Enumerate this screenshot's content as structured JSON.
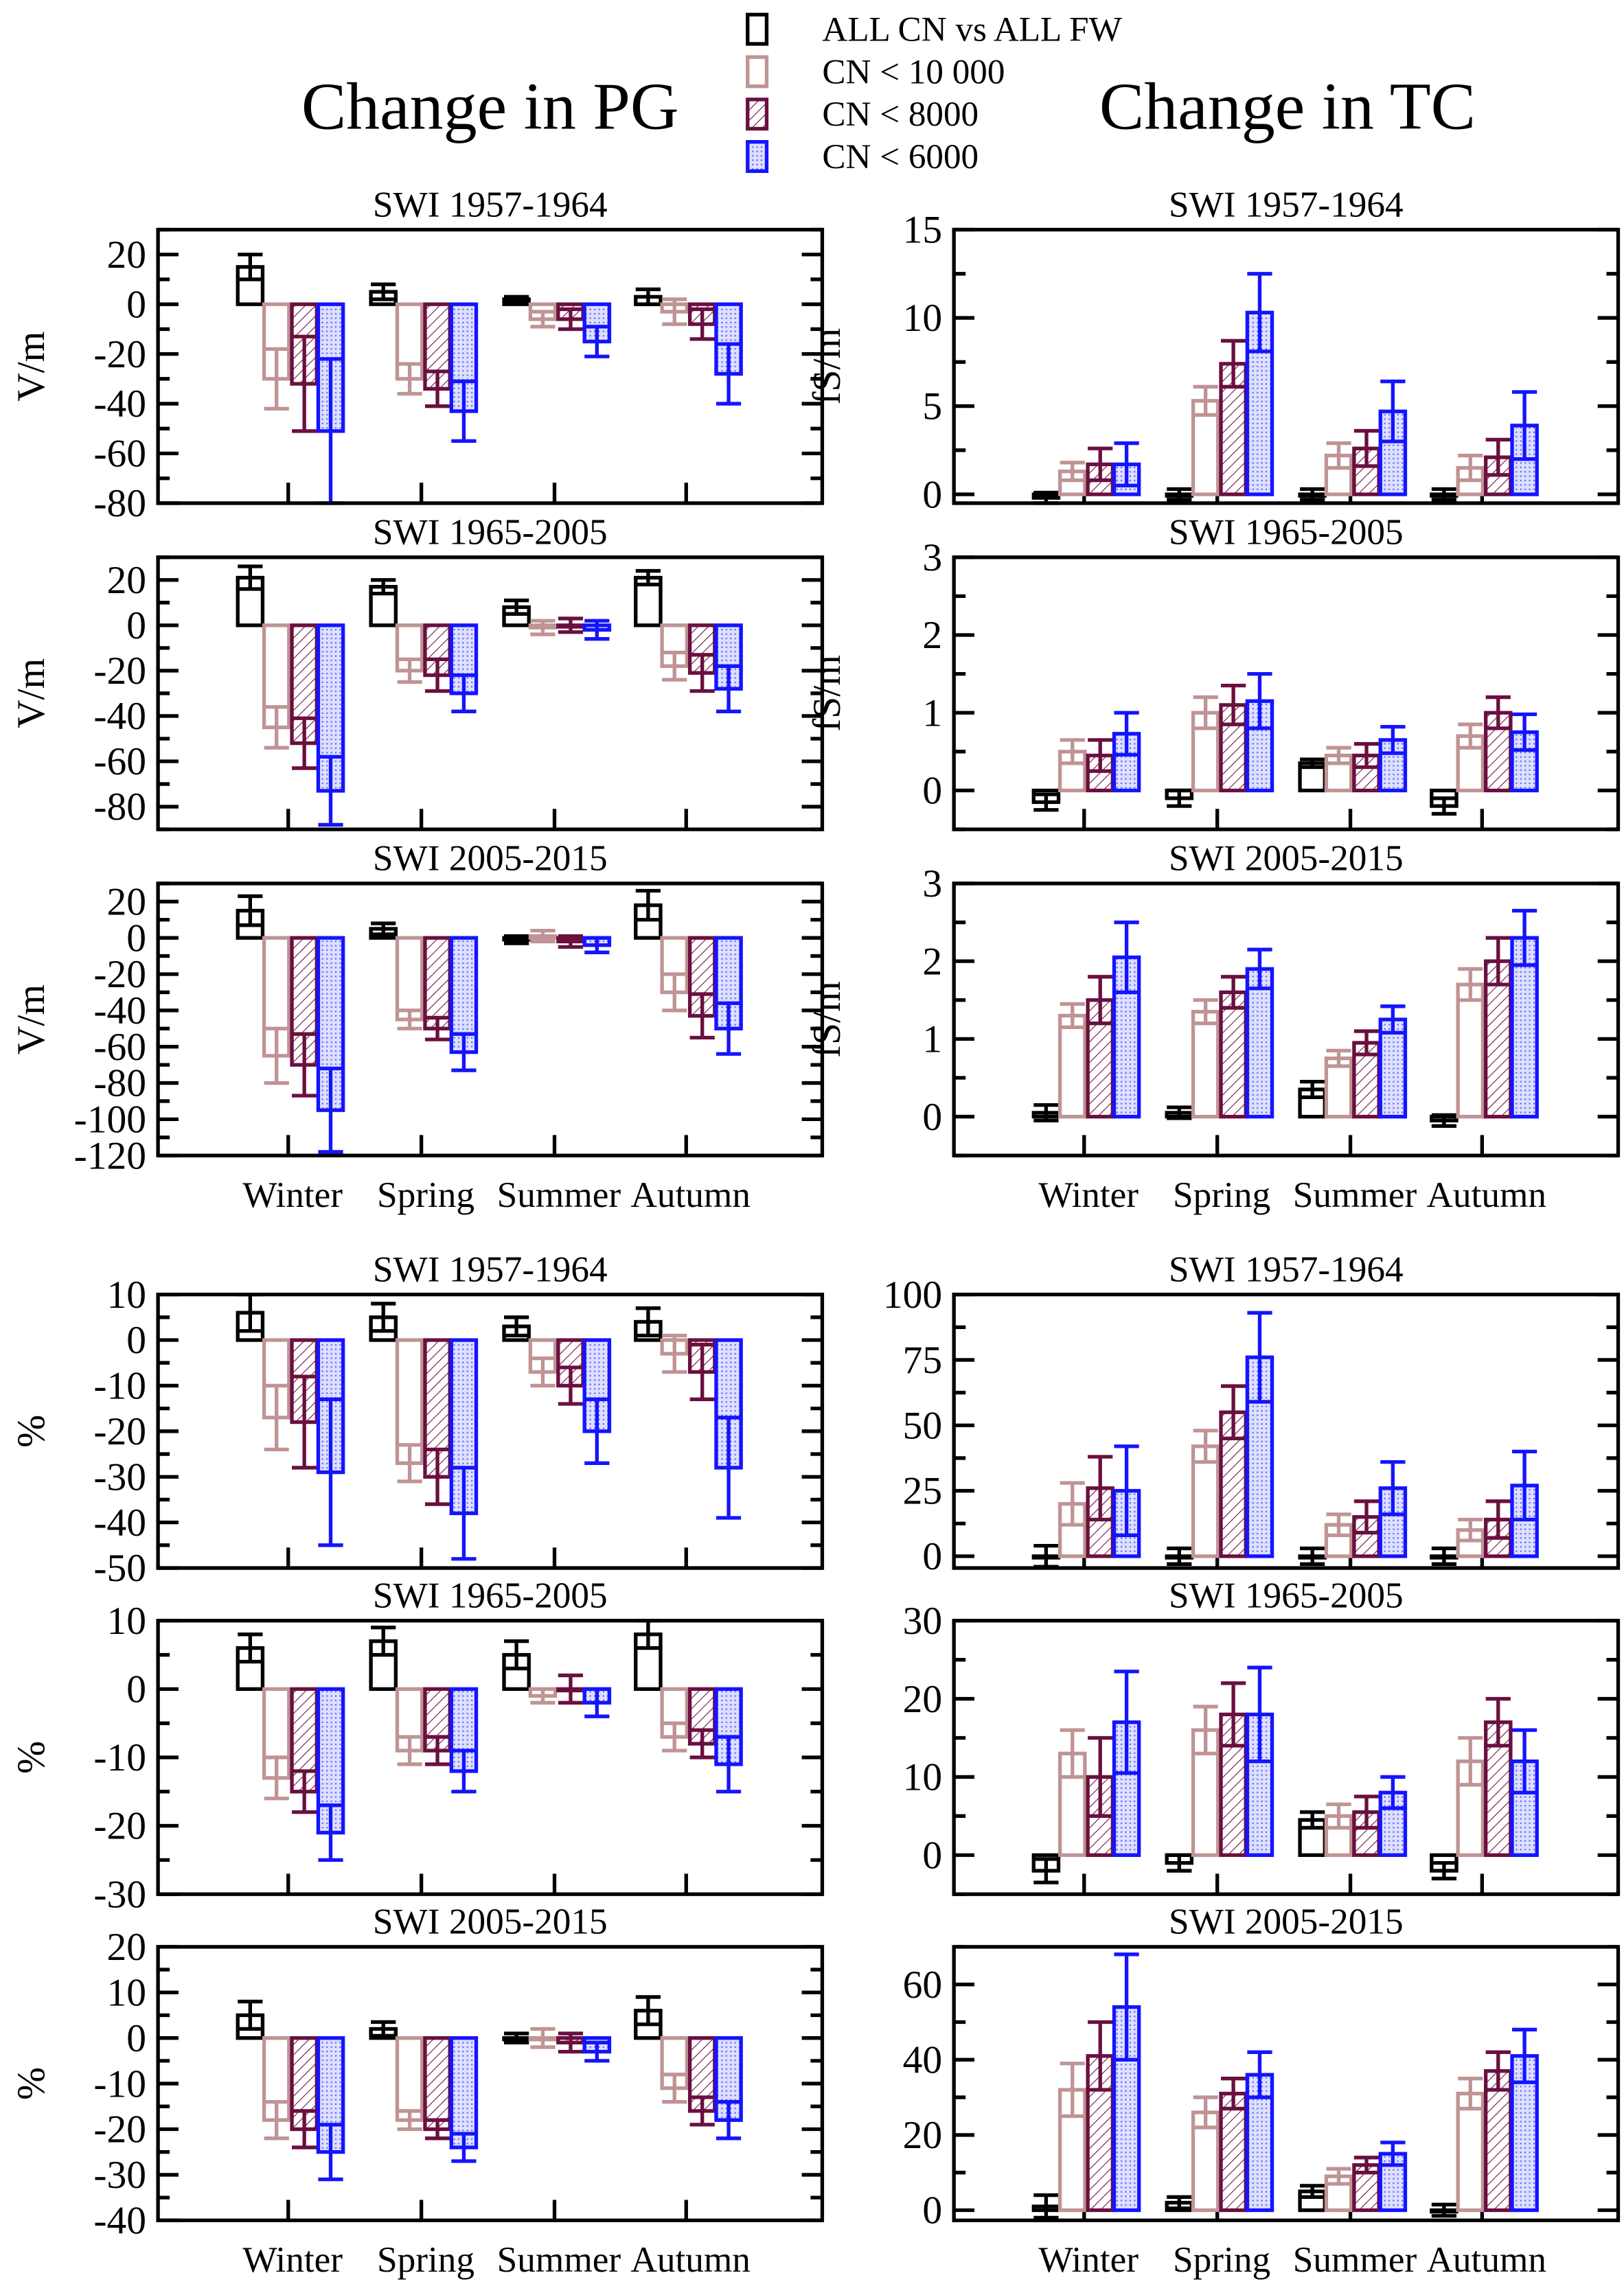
{
  "headings": {
    "left": "Change in PG",
    "right": "Change in TC"
  },
  "legend": [
    {
      "label": "ALL CN vs ALL FW",
      "color": "#000000",
      "fill": "none"
    },
    {
      "label": "CN < 10 000",
      "color": "#c09494",
      "fill": "none"
    },
    {
      "label": "CN < 8000",
      "color": "#6a0f40",
      "fill": "hatch"
    },
    {
      "label": "CN < 6000",
      "color": "#1414ff",
      "fill": "dots"
    }
  ],
  "chart_data": [
    {
      "type": "bar",
      "title": "SWI 1957-1964",
      "ylabel": "V/m",
      "ylim": [
        -80,
        30
      ],
      "yticks": [
        20,
        0,
        -20,
        -40,
        -60,
        -80
      ],
      "categories": [
        "Winter",
        "Spring",
        "Summer",
        "Autumn"
      ],
      "series": [
        {
          "name": "ALL CN vs ALL FW",
          "values": [
            15,
            5,
            2,
            3
          ],
          "errors": [
            5,
            3,
            1,
            3
          ]
        },
        {
          "name": "CN < 10 000",
          "values": [
            -30,
            -30,
            -6,
            -3
          ],
          "errors": [
            12,
            6,
            3,
            5
          ]
        },
        {
          "name": "CN < 8000",
          "values": [
            -32,
            -34,
            -6,
            -8
          ],
          "errors": [
            19,
            7,
            4,
            6
          ]
        },
        {
          "name": "CN < 6000",
          "values": [
            -51,
            -43,
            -15,
            -28
          ],
          "errors": [
            29,
            12,
            6,
            12
          ]
        }
      ]
    },
    {
      "type": "bar",
      "title": "SWI 1957-1964",
      "ylabel": "fS/m",
      "ylim": [
        -0.5,
        15
      ],
      "yticks": [
        15,
        10,
        5,
        0
      ],
      "categories": [
        "Winter",
        "Spring",
        "Summer",
        "Autumn"
      ],
      "series": [
        {
          "name": "ALL CN vs ALL FW",
          "values": [
            -0.2,
            0,
            0,
            0
          ],
          "errors": [
            0.3,
            0.3,
            0.3,
            0.3
          ]
        },
        {
          "name": "CN < 10 000",
          "values": [
            1.3,
            5.3,
            2.2,
            1.5
          ],
          "errors": [
            0.5,
            0.8,
            0.7,
            0.7
          ]
        },
        {
          "name": "CN < 8000",
          "values": [
            1.7,
            7.4,
            2.6,
            2.1
          ],
          "errors": [
            0.9,
            1.3,
            1.0,
            1.0
          ]
        },
        {
          "name": "CN < 6000",
          "values": [
            1.7,
            10.3,
            4.7,
            3.9
          ],
          "errors": [
            1.2,
            2.2,
            1.7,
            1.9
          ]
        }
      ]
    },
    {
      "type": "bar",
      "title": "SWI 1965-2005",
      "ylabel": "V/m",
      "ylim": [
        -90,
        30
      ],
      "yticks": [
        20,
        0,
        -20,
        -40,
        -60,
        -80
      ],
      "categories": [
        "Winter",
        "Spring",
        "Summer",
        "Autumn"
      ],
      "series": [
        {
          "name": "ALL CN vs ALL FW",
          "values": [
            21,
            17,
            8,
            21
          ],
          "errors": [
            5,
            3,
            3,
            3
          ]
        },
        {
          "name": "CN < 10 000",
          "values": [
            -45,
            -20,
            -1,
            -18
          ],
          "errors": [
            9,
            5,
            3,
            6
          ]
        },
        {
          "name": "CN < 8000",
          "values": [
            -52,
            -22,
            0,
            -21
          ],
          "errors": [
            11,
            7,
            3,
            8
          ]
        },
        {
          "name": "CN < 6000",
          "values": [
            -73,
            -30,
            -2,
            -28
          ],
          "errors": [
            15,
            8,
            4,
            10
          ]
        }
      ]
    },
    {
      "type": "bar",
      "title": "SWI 1965-2005",
      "ylabel": "fS/m",
      "ylim": [
        -0.5,
        3
      ],
      "yticks": [
        3,
        2,
        1,
        0
      ],
      "categories": [
        "Winter",
        "Spring",
        "Summer",
        "Autumn"
      ],
      "series": [
        {
          "name": "ALL CN vs ALL FW",
          "values": [
            -0.15,
            -0.1,
            0.35,
            -0.2
          ],
          "errors": [
            0.1,
            0.1,
            0.05,
            0.1
          ]
        },
        {
          "name": "CN < 10 000",
          "values": [
            0.5,
            1.0,
            0.45,
            0.7
          ],
          "errors": [
            0.15,
            0.2,
            0.1,
            0.15
          ]
        },
        {
          "name": "CN < 8000",
          "values": [
            0.45,
            1.1,
            0.45,
            1.0
          ],
          "errors": [
            0.2,
            0.25,
            0.15,
            0.2
          ]
        },
        {
          "name": "CN < 6000",
          "values": [
            0.73,
            1.15,
            0.65,
            0.75
          ],
          "errors": [
            0.27,
            0.35,
            0.17,
            0.23
          ]
        }
      ]
    },
    {
      "type": "bar",
      "title": "SWI 2005-2015",
      "ylabel": "V/m",
      "ylim": [
        -120,
        30
      ],
      "yticks": [
        20,
        0,
        -20,
        -40,
        -60,
        -80,
        -100,
        -120
      ],
      "categories": [
        "Winter",
        "Spring",
        "Summer",
        "Autumn"
      ],
      "xlabels": true,
      "series": [
        {
          "name": "ALL CN vs ALL FW",
          "values": [
            15,
            5,
            -1,
            18
          ],
          "errors": [
            8,
            3,
            2,
            8
          ]
        },
        {
          "name": "CN < 10 000",
          "values": [
            -65,
            -45,
            1,
            -30
          ],
          "errors": [
            15,
            5,
            3,
            10
          ]
        },
        {
          "name": "CN < 8000",
          "values": [
            -70,
            -50,
            -2,
            -43
          ],
          "errors": [
            17,
            6,
            3,
            12
          ]
        },
        {
          "name": "CN < 6000",
          "values": [
            -95,
            -63,
            -4,
            -50
          ],
          "errors": [
            23,
            10,
            4,
            14
          ]
        }
      ]
    },
    {
      "type": "bar",
      "title": "SWI 2005-2015",
      "ylabel": "fS/m",
      "ylim": [
        -0.5,
        3
      ],
      "yticks": [
        3,
        2,
        1,
        0
      ],
      "categories": [
        "Winter",
        "Spring",
        "Summer",
        "Autumn"
      ],
      "xlabels": true,
      "series": [
        {
          "name": "ALL CN vs ALL FW",
          "values": [
            0.05,
            0.05,
            0.35,
            -0.05
          ],
          "errors": [
            0.1,
            0.07,
            0.1,
            0.07
          ]
        },
        {
          "name": "CN < 10 000",
          "values": [
            1.3,
            1.35,
            0.75,
            1.7
          ],
          "errors": [
            0.15,
            0.15,
            0.1,
            0.2
          ]
        },
        {
          "name": "CN < 8000",
          "values": [
            1.5,
            1.6,
            0.95,
            2.0
          ],
          "errors": [
            0.3,
            0.2,
            0.15,
            0.3
          ]
        },
        {
          "name": "CN < 6000",
          "values": [
            2.05,
            1.9,
            1.25,
            2.3
          ],
          "errors": [
            0.45,
            0.25,
            0.17,
            0.35
          ]
        }
      ]
    },
    {
      "type": "bar",
      "title": "SWI 1957-1964",
      "ylabel": "%",
      "ylim": [
        -50,
        10
      ],
      "yticks": [
        10,
        0,
        -10,
        -20,
        -30,
        -40,
        -50
      ],
      "categories": [
        "Winter",
        "Spring",
        "Summer",
        "Autumn"
      ],
      "series": [
        {
          "name": "ALL CN vs ALL FW",
          "values": [
            6,
            5,
            3,
            4
          ],
          "errors": [
            4,
            3,
            2,
            3
          ]
        },
        {
          "name": "CN < 10 000",
          "values": [
            -17,
            -27,
            -7,
            -3
          ],
          "errors": [
            7,
            4,
            3,
            4
          ]
        },
        {
          "name": "CN < 8000",
          "values": [
            -18,
            -30,
            -10,
            -7
          ],
          "errors": [
            10,
            6,
            4,
            6
          ]
        },
        {
          "name": "CN < 6000",
          "values": [
            -29,
            -38,
            -20,
            -28
          ],
          "errors": [
            16,
            10,
            7,
            11
          ]
        }
      ]
    },
    {
      "type": "bar",
      "title": "SWI 1957-1964",
      "ylabel": "",
      "ylim": [
        -4.5,
        100
      ],
      "yticks": [
        100,
        75,
        50,
        25,
        0
      ],
      "categories": [
        "Winter",
        "Spring",
        "Summer",
        "Autumn"
      ],
      "series": [
        {
          "name": "ALL CN vs ALL FW",
          "values": [
            0,
            0,
            0,
            0
          ],
          "errors": [
            4,
            3,
            3,
            3
          ]
        },
        {
          "name": "CN < 10 000",
          "values": [
            20,
            42,
            12,
            10
          ],
          "errors": [
            8,
            6,
            4,
            4
          ]
        },
        {
          "name": "CN < 8000",
          "values": [
            26,
            55,
            15,
            14
          ],
          "errors": [
            12,
            10,
            6,
            7
          ]
        },
        {
          "name": "CN < 6000",
          "values": [
            25,
            76,
            26,
            27
          ],
          "errors": [
            17,
            17,
            10,
            13
          ]
        }
      ]
    },
    {
      "type": "bar",
      "title": "SWI 1965-2005",
      "ylabel": "%",
      "ylim": [
        -30,
        10
      ],
      "yticks": [
        10,
        0,
        -10,
        -20,
        -30
      ],
      "categories": [
        "Winter",
        "Spring",
        "Summer",
        "Autumn"
      ],
      "series": [
        {
          "name": "ALL CN vs ALL FW",
          "values": [
            6,
            7,
            5,
            8
          ],
          "errors": [
            2,
            2,
            2,
            2
          ]
        },
        {
          "name": "CN < 10 000",
          "values": [
            -13,
            -9,
            -1,
            -7
          ],
          "errors": [
            3,
            2,
            1,
            2
          ]
        },
        {
          "name": "CN < 8000",
          "values": [
            -15,
            -9,
            0,
            -8
          ],
          "errors": [
            3,
            2,
            2,
            2
          ]
        },
        {
          "name": "CN < 6000",
          "values": [
            -21,
            -12,
            -2,
            -11
          ],
          "errors": [
            4,
            3,
            2,
            4
          ]
        }
      ]
    },
    {
      "type": "bar",
      "title": "SWI 1965-2005",
      "ylabel": "",
      "ylim": [
        -5,
        30
      ],
      "yticks": [
        30,
        20,
        10,
        0
      ],
      "categories": [
        "Winter",
        "Spring",
        "Summer",
        "Autumn"
      ],
      "series": [
        {
          "name": "ALL CN vs ALL FW",
          "values": [
            -2,
            -1,
            4.5,
            -2
          ],
          "errors": [
            1.5,
            1,
            1,
            1
          ]
        },
        {
          "name": "CN < 10 000",
          "values": [
            13,
            16,
            5,
            12
          ],
          "errors": [
            3,
            3,
            1.5,
            3
          ]
        },
        {
          "name": "CN < 8000",
          "values": [
            10,
            18,
            5.5,
            17
          ],
          "errors": [
            5,
            4,
            2,
            3
          ]
        },
        {
          "name": "CN < 6000",
          "values": [
            17,
            18,
            8,
            12
          ],
          "errors": [
            6.5,
            6,
            2,
            4
          ]
        }
      ]
    },
    {
      "type": "bar",
      "title": "SWI 2005-2015",
      "ylabel": "%",
      "ylim": [
        -40,
        20
      ],
      "yticks": [
        20,
        10,
        0,
        -10,
        -20,
        -30,
        -40
      ],
      "categories": [
        "Winter",
        "Spring",
        "Summer",
        "Autumn"
      ],
      "xlabels": true,
      "series": [
        {
          "name": "ALL CN vs ALL FW",
          "values": [
            5,
            2,
            0,
            6
          ],
          "errors": [
            3,
            1.5,
            1,
            3
          ]
        },
        {
          "name": "CN < 10 000",
          "values": [
            -18,
            -18,
            0,
            -11
          ],
          "errors": [
            4,
            2,
            2,
            3
          ]
        },
        {
          "name": "CN < 8000",
          "values": [
            -20,
            -20,
            -1,
            -16
          ],
          "errors": [
            4,
            2,
            2,
            3
          ]
        },
        {
          "name": "CN < 6000",
          "values": [
            -25,
            -24,
            -3,
            -18
          ],
          "errors": [
            6,
            3,
            2,
            4
          ]
        }
      ]
    },
    {
      "type": "bar",
      "title": "SWI 2005-2015",
      "ylabel": "",
      "ylim": [
        -2.7,
        70
      ],
      "yticks": [
        60,
        40,
        20,
        0
      ],
      "categories": [
        "Winter",
        "Spring",
        "Summer",
        "Autumn"
      ],
      "xlabels": true,
      "series": [
        {
          "name": "ALL CN vs ALL FW",
          "values": [
            1,
            2,
            5,
            0
          ],
          "errors": [
            3,
            1.5,
            1.5,
            1.5
          ]
        },
        {
          "name": "CN < 10 000",
          "values": [
            32,
            26,
            9,
            31
          ],
          "errors": [
            7,
            4,
            2,
            4
          ]
        },
        {
          "name": "CN < 8000",
          "values": [
            41,
            31,
            12,
            37
          ],
          "errors": [
            9,
            4,
            2,
            5
          ]
        },
        {
          "name": "CN < 6000",
          "values": [
            54,
            36,
            15,
            41
          ],
          "errors": [
            14,
            6,
            3,
            7
          ]
        }
      ]
    }
  ]
}
